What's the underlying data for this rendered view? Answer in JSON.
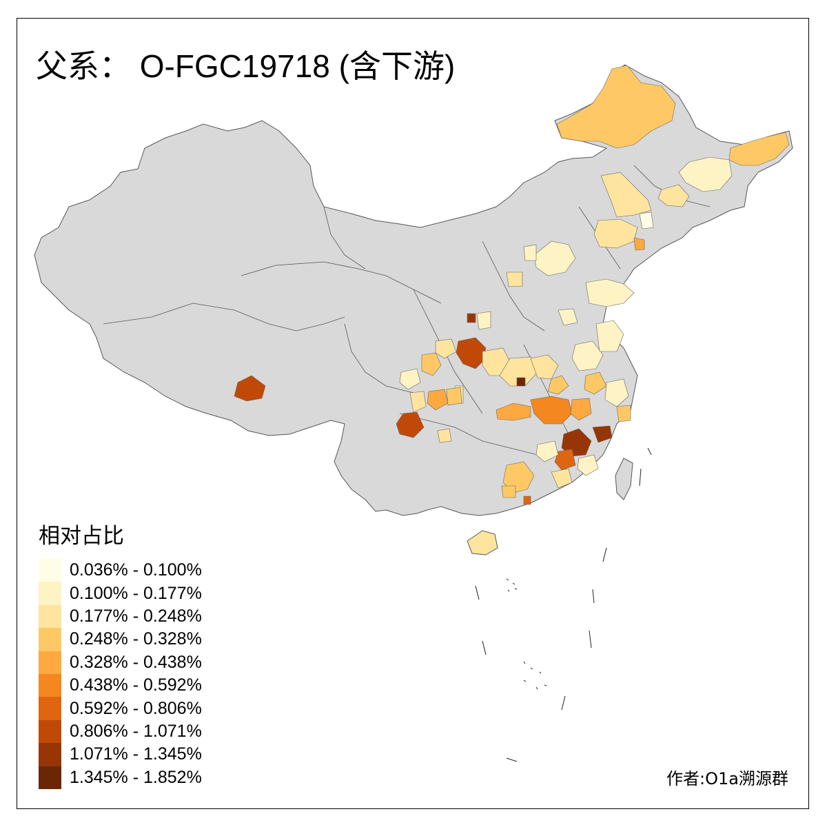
{
  "title": "父系： O-FGC19718 (含下游)",
  "legend": {
    "title": "相对占比",
    "classes": [
      {
        "label": "0.036% - 0.100%",
        "color": "#fffde6"
      },
      {
        "label": "0.100% - 0.177%",
        "color": "#fdf3c4"
      },
      {
        "label": "0.177% - 0.248%",
        "color": "#fee49f"
      },
      {
        "label": "0.248% - 0.328%",
        "color": "#fec965"
      },
      {
        "label": "0.328% - 0.438%",
        "color": "#fda93f"
      },
      {
        "label": "0.438% - 0.592%",
        "color": "#f4871f"
      },
      {
        "label": "0.592% - 0.806%",
        "color": "#e0650f"
      },
      {
        "label": "0.806% - 1.071%",
        "color": "#c14908"
      },
      {
        "label": "1.071% - 1.345%",
        "color": "#983506"
      },
      {
        "label": "1.345% - 1.852%",
        "color": "#6b2606"
      }
    ]
  },
  "credit": "作者:O1a溯源群",
  "colors": {
    "base_region": "#d9d9d9",
    "border": "#555555"
  }
}
